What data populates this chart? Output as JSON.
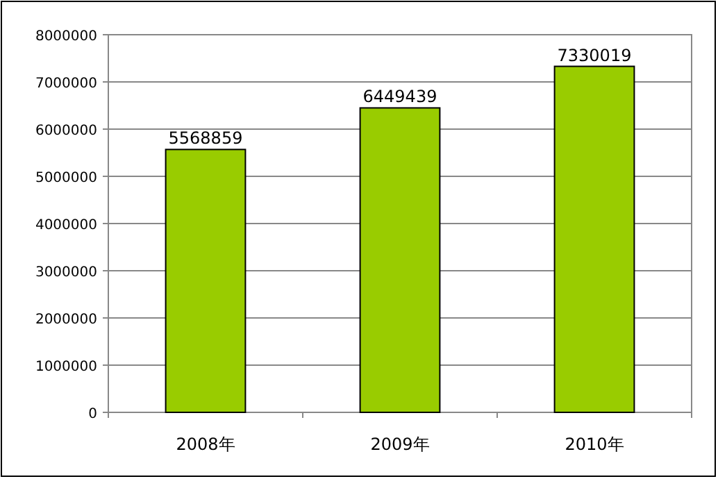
{
  "chart_data": {
    "type": "bar",
    "categories": [
      "2008年",
      "2009年",
      "2010年"
    ],
    "values": [
      5568859,
      6449439,
      7330019
    ],
    "color": "#99cc00",
    "ylim": [
      0,
      8000000
    ],
    "yticks": [
      0,
      1000000,
      2000000,
      3000000,
      4000000,
      5000000,
      6000000,
      7000000,
      8000000
    ],
    "grid": "y",
    "data_labels": true
  }
}
